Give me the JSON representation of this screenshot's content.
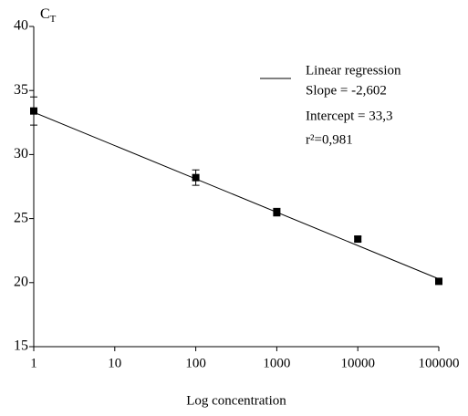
{
  "chart_data": {
    "type": "scatter",
    "x_label": "Log concentration",
    "y_label": {
      "text": "C",
      "subscript": "T"
    },
    "x": [
      1,
      100,
      1000,
      10000,
      100000
    ],
    "values": [
      33.4,
      28.2,
      25.5,
      23.4,
      20.1
    ],
    "errors": [
      1.1,
      0.6,
      0.3,
      0.2,
      0.1
    ],
    "color": "#000000",
    "xlim": [
      1,
      100000
    ],
    "xticks": [
      1,
      10,
      100,
      1000,
      10000,
      100000
    ],
    "xscale": "log",
    "ylim": [
      15,
      40
    ],
    "yticks": [
      15,
      20,
      25,
      30,
      35,
      40
    ],
    "grid": false,
    "regression": {
      "name": "Linear regression",
      "slope": {
        "value": -2.602,
        "label": "Slope = -2,602"
      },
      "intercept": {
        "value": 33.3,
        "label": "Intercept = 33,3"
      },
      "r2": {
        "value": 0.981,
        "label": "r²=0,981"
      }
    }
  }
}
